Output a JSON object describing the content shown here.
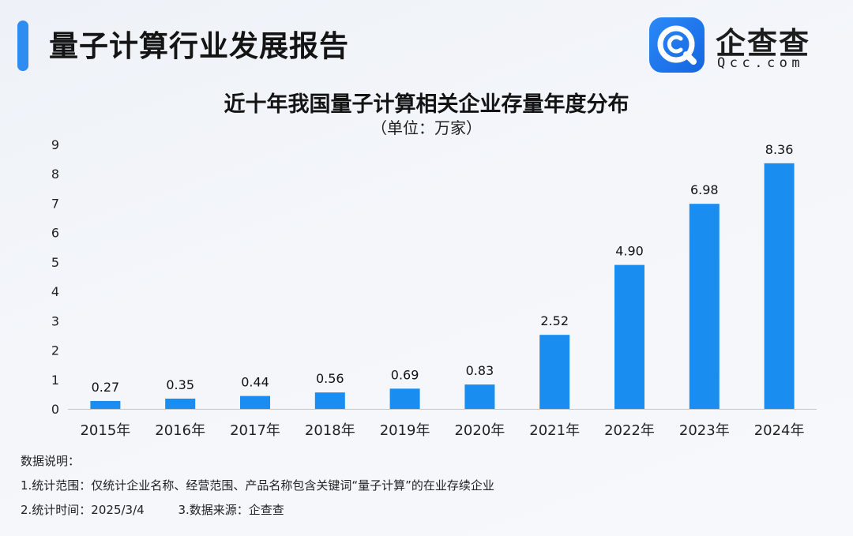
{
  "header": {
    "report_title": "量子计算行业发展报告",
    "logo_cn": "企查查",
    "logo_en": "Qcc.com"
  },
  "colors": {
    "accent": "#2f8cf0",
    "bar": "#1a8ef0",
    "brand": "#1f6fe8"
  },
  "chart_data": {
    "type": "bar",
    "title": "近十年我国量子计算相关企业存量年度分布",
    "subtitle": "（单位：万家）",
    "categories": [
      "2015年",
      "2016年",
      "2017年",
      "2018年",
      "2019年",
      "2020年",
      "2021年",
      "2022年",
      "2023年",
      "2024年"
    ],
    "values": [
      0.27,
      0.35,
      0.44,
      0.56,
      0.69,
      0.83,
      2.52,
      4.9,
      6.98,
      8.36
    ],
    "data_labels": [
      "0.27",
      "0.35",
      "0.44",
      "0.56",
      "0.69",
      "0.83",
      "2.52",
      "4.90",
      "6.98",
      "8.36"
    ],
    "ylim": [
      0,
      9
    ],
    "yticks": [
      "0",
      "1",
      "2",
      "3",
      "4",
      "5",
      "6",
      "7",
      "8",
      "9"
    ],
    "xlabel": "",
    "ylabel": "",
    "grid": false,
    "legend": "none"
  },
  "notes": {
    "heading": "数据说明：",
    "line1": "1.统计范围：仅统计企业名称、经营范围、产品名称包含关键词“量子计算”的在业存续企业",
    "line2_time": "2.统计时间：2025/3/4",
    "line2_source": "3.数据来源：企查查"
  }
}
